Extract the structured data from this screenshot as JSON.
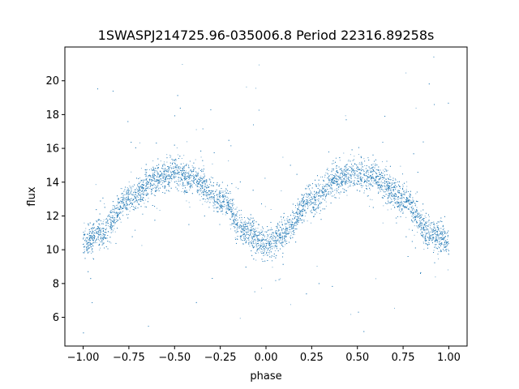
{
  "chart_data": {
    "type": "scatter",
    "title": "1SWASPJ214725.96-035006.8 Period 22316.89258s",
    "xlabel": "phase",
    "ylabel": "flux",
    "xlim": [
      -1.1,
      1.1
    ],
    "ylim": [
      4.3,
      22.0
    ],
    "xticks": [
      -1.0,
      -0.75,
      -0.5,
      -0.25,
      0.0,
      0.25,
      0.5,
      0.75,
      1.0
    ],
    "xtick_labels": [
      "−1.00",
      "−0.75",
      "−0.50",
      "−0.25",
      "0.00",
      "0.25",
      "0.50",
      "0.75",
      "1.00"
    ],
    "yticks": [
      6,
      8,
      10,
      12,
      14,
      16,
      18,
      20
    ],
    "ytick_labels": [
      "6",
      "8",
      "10",
      "12",
      "14",
      "16",
      "18",
      "20"
    ],
    "grid": false,
    "legend": "none",
    "marker_color": "#1f77b4",
    "series": [
      {
        "phase_profile_x": [
          -1.0,
          -0.9,
          -0.75,
          -0.6,
          -0.5,
          -0.4,
          -0.25,
          -0.1,
          0.0,
          0.1,
          0.25,
          0.4,
          0.5,
          0.6,
          0.75,
          0.9,
          1.0
        ],
        "phase_profile_y": [
          10.5,
          11.0,
          13.0,
          14.2,
          14.5,
          14.2,
          13.0,
          11.0,
          10.3,
          11.0,
          13.0,
          14.2,
          14.5,
          14.2,
          13.0,
          11.0,
          10.5
        ]
      }
    ]
  }
}
